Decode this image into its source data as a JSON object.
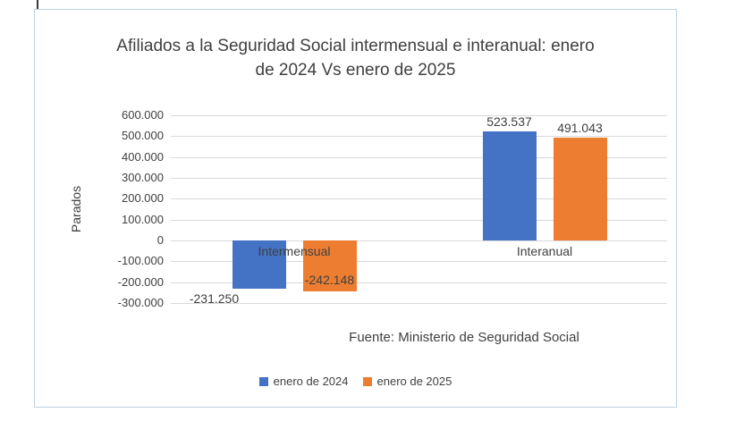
{
  "chart_data": {
    "type": "bar",
    "title": "Afiliados a la Seguridad Social intermensual e interanual: enero de 2024 Vs enero de 2025",
    "ylabel": "Parados",
    "categories": [
      "Intermensual",
      "Interanual"
    ],
    "series": [
      {
        "name": "enero de 2024",
        "color": "#4472C4",
        "values": [
          -231250,
          523537
        ],
        "labels": [
          "-231.250",
          "523.537"
        ]
      },
      {
        "name": "enero de 2025",
        "color": "#ED7D31",
        "values": [
          -242148,
          491043
        ],
        "labels": [
          "-242.148",
          "491.043"
        ]
      }
    ],
    "ylim": [
      -300000,
      600000
    ],
    "ytick_step": 100000,
    "ytick_labels": [
      "600.000",
      "500.000",
      "400.000",
      "300.000",
      "200.000",
      "100.000",
      "0",
      "-100.000",
      "-200.000",
      "-300.000"
    ],
    "grid": true,
    "legend_position": "bottom",
    "source": "Fuente: Ministerio de Seguridad Social",
    "colors": {
      "grid": "#d9d9d9",
      "text": "#404040",
      "border": "#bcd0e4"
    }
  }
}
